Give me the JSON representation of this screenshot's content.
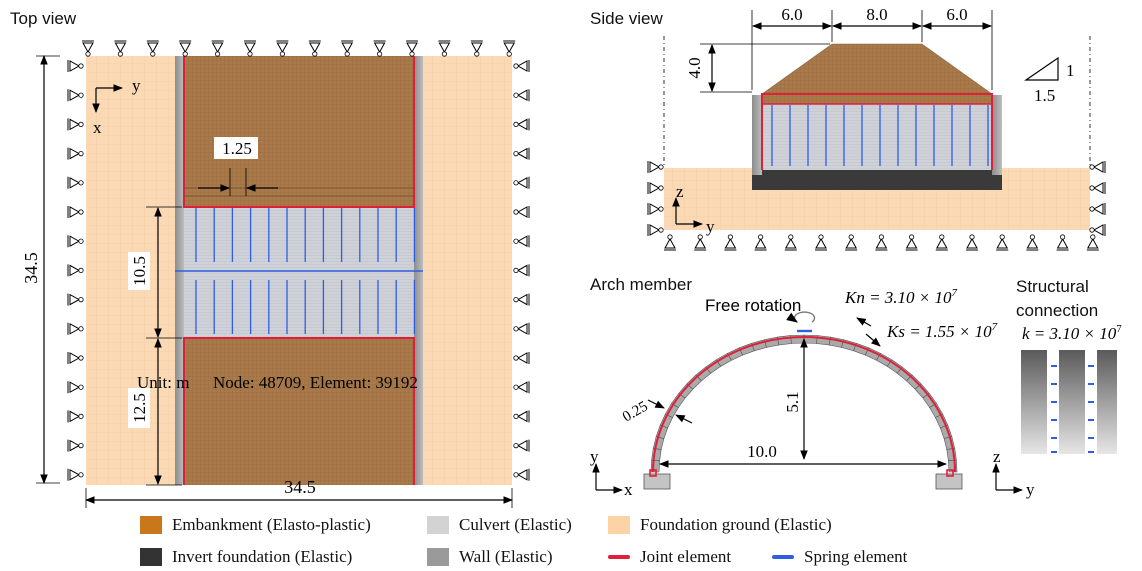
{
  "panels": {
    "top_view": "Top view",
    "side_view": "Side view",
    "arch_member": "Arch member",
    "structural_connection_1": "Structural",
    "structural_connection_2": "connection"
  },
  "top_view": {
    "axis_y": "y",
    "axis_x": "x",
    "dim_height": "34.5",
    "dim_width": "34.5",
    "dim_gap": "1.25",
    "dim_culvert": "10.5",
    "dim_lower": "12.5",
    "unit": "Unit: m",
    "mesh_info": "Node: 48709, Element: 39192"
  },
  "side_view": {
    "dim_left": "6.0",
    "dim_mid": "8.0",
    "dim_right": "6.0",
    "dim_height": "4.0",
    "slope_rise": "1",
    "slope_run": "1.5",
    "axis_z": "z",
    "axis_y": "y"
  },
  "arch": {
    "free_rotation": "Free rotation",
    "kn": "Kn = 3.10 × 10",
    "kn_exp": "7",
    "ks": "Ks = 1.55 × 10",
    "ks_exp": "7",
    "height": "5.1",
    "span": "10.0",
    "thickness": "0.25",
    "axis_y": "y",
    "axis_x": "x"
  },
  "connection": {
    "k": "k = 3.10 × 10",
    "k_exp": "7",
    "axis_z": "z",
    "axis_y": "y"
  },
  "legend": [
    {
      "label": "Embankment (Elasto-plastic)",
      "color": "#c8771a",
      "kind": "swatch"
    },
    {
      "label": "Culvert (Elastic)",
      "color": "#d3d3d3",
      "kind": "swatch"
    },
    {
      "label": "Foundation ground (Elastic)",
      "color": "#fbd3a6",
      "kind": "swatch"
    },
    {
      "label": "Invert foundation (Elastic)",
      "color": "#333333",
      "kind": "swatch"
    },
    {
      "label": "Wall (Elastic)",
      "color": "#9a9a9a",
      "kind": "swatch"
    },
    {
      "label": "Joint element",
      "color": "#e0203a",
      "kind": "line"
    },
    {
      "label": "Spring element",
      "color": "#2f5fe0",
      "kind": "line"
    }
  ],
  "colors": {
    "embankment": "#a7784a",
    "foundation": "#fbd9b4",
    "culvert": "#c9ccd6",
    "joint": "#e0203a",
    "spring": "#2f5fe0",
    "wall": "#9a9a9a",
    "invert": "#3a3a3a"
  }
}
